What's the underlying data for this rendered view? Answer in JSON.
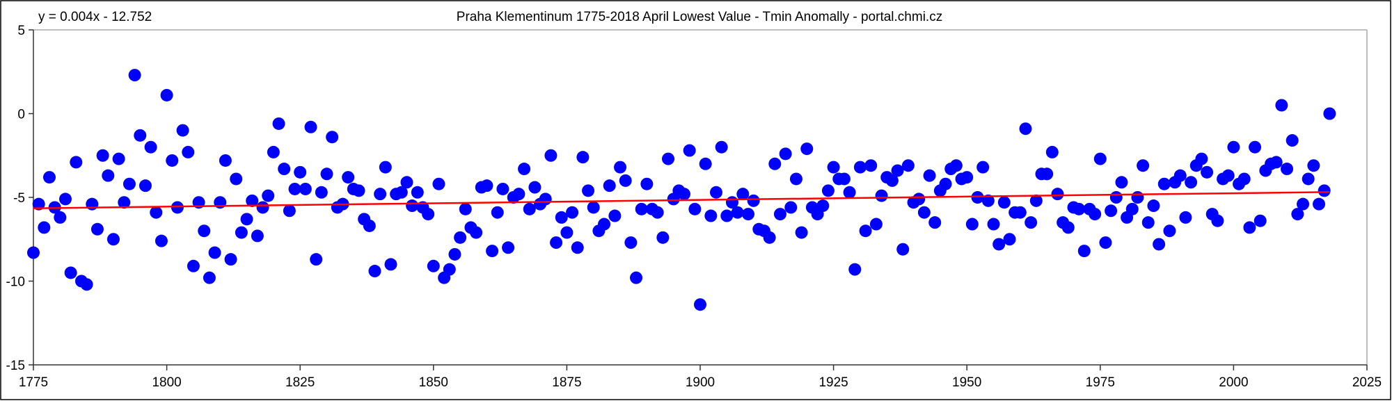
{
  "chart_data": {
    "type": "scatter",
    "title": "Praha Klementinum 1775-2018 April Lowest Value - Tmin Anomally - portal.chmi.cz",
    "trendline_label": "y = 0.004x - 12.752",
    "trendline": {
      "slope": 0.004,
      "intercept": -12.752,
      "color": "#ff0000"
    },
    "marker_color": "#0000ff",
    "xlabel": "",
    "ylabel": "",
    "xlim": [
      1775,
      2025
    ],
    "ylim": [
      -15,
      5
    ],
    "x_ticks": [
      1775,
      1800,
      1825,
      1850,
      1875,
      1900,
      1925,
      1950,
      1975,
      2000,
      2025
    ],
    "y_ticks": [
      5,
      0,
      -5,
      -10,
      -15
    ],
    "grid": false,
    "x_start": 1775,
    "values": [
      -8.3,
      -5.4,
      -6.8,
      -3.8,
      -5.6,
      -6.2,
      -5.1,
      -9.5,
      -2.9,
      -10.0,
      -10.2,
      -5.4,
      -6.9,
      -2.5,
      -3.7,
      -7.5,
      -2.7,
      -5.3,
      -4.2,
      2.3,
      -1.3,
      -4.3,
      -2.0,
      -5.9,
      -7.6,
      1.1,
      -2.8,
      -5.6,
      -1.0,
      -2.3,
      -9.1,
      -5.3,
      -7.0,
      -9.8,
      -8.3,
      -5.3,
      -2.8,
      -8.7,
      -3.9,
      -7.1,
      -6.3,
      -5.2,
      -7.3,
      -5.6,
      -4.9,
      -2.3,
      -0.6,
      -3.3,
      -5.8,
      -4.5,
      -3.5,
      -4.5,
      -0.8,
      -8.7,
      -4.7,
      -3.6,
      -1.4,
      -5.6,
      -5.4,
      -3.8,
      -4.5,
      -4.6,
      -6.3,
      -6.7,
      -9.4,
      -4.8,
      -3.2,
      -9.0,
      -4.8,
      -4.7,
      -4.1,
      -5.5,
      -4.7,
      -5.6,
      -6.0,
      -9.1,
      -4.2,
      -9.8,
      -9.3,
      -8.4,
      -7.4,
      -5.7,
      -6.8,
      -7.1,
      -4.4,
      -4.3,
      -8.2,
      -5.9,
      -4.5,
      -8.0,
      -5.0,
      -4.8,
      -3.3,
      -5.7,
      -4.4,
      -5.4,
      -5.1,
      -2.5,
      -7.7,
      -6.2,
      -7.1,
      -5.9,
      -8.0,
      -2.6,
      -4.6,
      -5.6,
      -7.0,
      -6.6,
      -4.3,
      -6.1,
      -3.2,
      -4.0,
      -7.7,
      -9.8,
      -5.7,
      -4.2,
      -5.7,
      -5.9,
      -7.4,
      -2.7,
      -5.1,
      -4.6,
      -4.8,
      -2.2,
      -5.7,
      -11.4,
      -3.0,
      -6.1,
      -4.7,
      -2.0,
      -6.1,
      -5.3,
      -5.9,
      -4.8,
      -6.0,
      -5.2,
      -6.9,
      -7.0,
      -7.4,
      -3.0,
      -6.0,
      -2.4,
      -5.6,
      -3.9,
      -7.1,
      -2.1,
      -5.6,
      -6.0,
      -5.5,
      -4.6,
      -3.2,
      -3.9,
      -3.9,
      -4.7,
      -9.3,
      -3.2,
      -7.0,
      -3.1,
      -6.6,
      -4.9,
      -3.8,
      -4.0,
      -3.4,
      -8.1,
      -3.1,
      -5.3,
      -5.1,
      -5.9,
      -3.7,
      -6.5,
      -4.6,
      -4.2,
      -3.3,
      -3.1,
      -3.9,
      -3.8,
      -6.6,
      -5.0,
      -3.2,
      -5.2,
      -6.6,
      -7.8,
      -5.3,
      -7.5,
      -5.9,
      -5.9,
      -0.9,
      -6.5,
      -5.2,
      -3.6,
      -3.6,
      -2.3,
      -4.8,
      -6.5,
      -6.8,
      -5.6,
      -5.7,
      -8.2,
      -5.7,
      -6.0,
      -2.7,
      -7.7,
      -5.8,
      -5.0,
      -4.1,
      -6.2,
      -5.7,
      -5.0,
      -3.1,
      -6.5,
      -5.5,
      -7.8,
      -4.2,
      -7.0,
      -4.1,
      -3.7,
      -6.2,
      -4.1,
      -3.1,
      -2.7,
      -3.5,
      -6.0,
      -6.4,
      -3.9,
      -3.7,
      -2.0,
      -4.2,
      -3.9,
      -6.8,
      -2.0,
      -6.4,
      -3.4,
      -3.0,
      -2.9,
      0.5,
      -3.3,
      -1.6,
      -6.0,
      -5.4,
      -3.9,
      -3.1,
      -5.4,
      -4.6,
      0.0
    ]
  }
}
